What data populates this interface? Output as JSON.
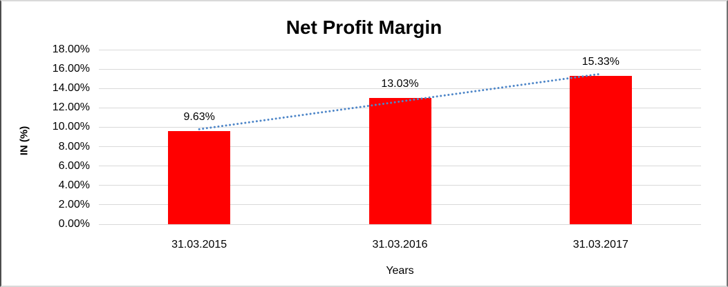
{
  "chart_data": {
    "type": "bar",
    "title": "Net Profit Margin",
    "xlabel": "Years",
    "ylabel": "IN (%)",
    "categories": [
      "31.03.2015",
      "31.03.2016",
      "31.03.2017"
    ],
    "values": [
      9.63,
      13.03,
      15.33
    ],
    "data_labels": [
      "9.63%",
      "13.03%",
      "15.33%"
    ],
    "ylim": [
      0,
      18
    ],
    "ytick_labels": [
      "0.00%",
      "2.00%",
      "4.00%",
      "6.00%",
      "8.00%",
      "10.00%",
      "12.00%",
      "14.00%",
      "16.00%",
      "18.00%"
    ],
    "grid": true,
    "legend": "none",
    "trendline": {
      "style": "dotted",
      "start_value": 9.8,
      "end_value": 15.5
    },
    "colors": {
      "bar": "#FF0000",
      "trendline": "#4E86C8",
      "gridline": "#D9D9D9",
      "text": "#000000"
    }
  }
}
